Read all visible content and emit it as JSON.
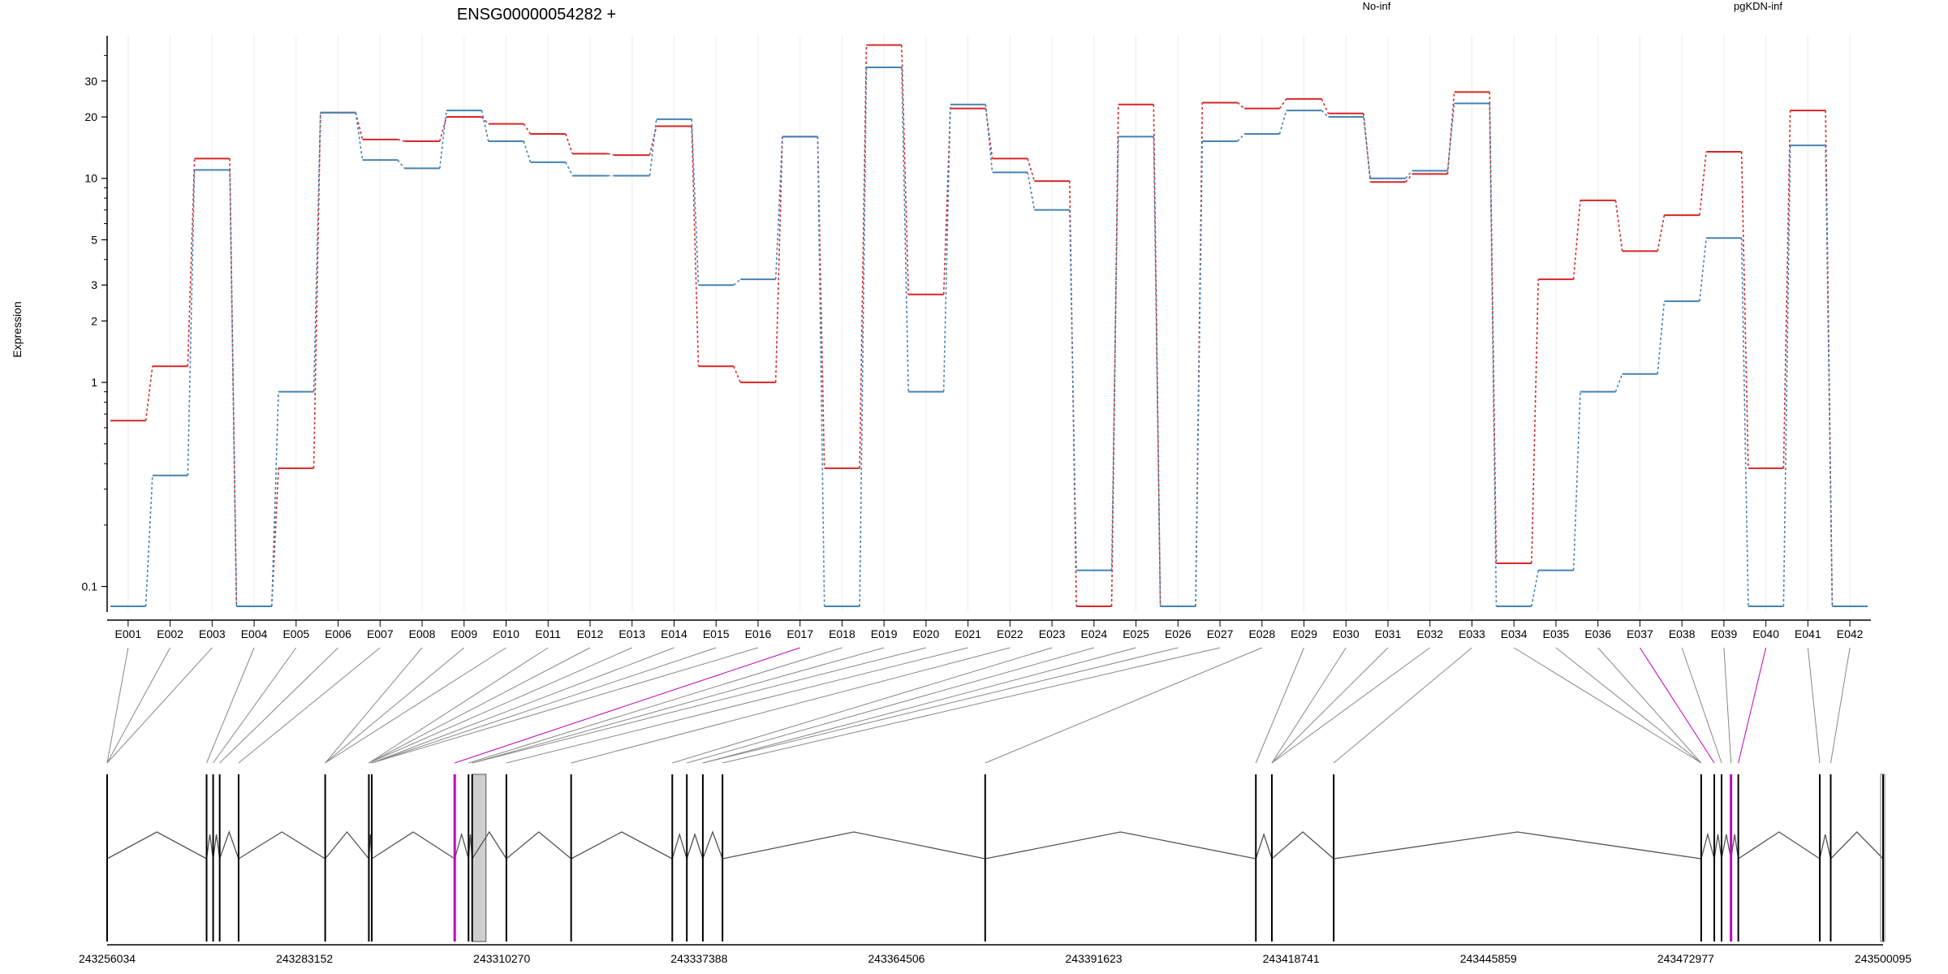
{
  "chart_data": {
    "type": "line",
    "title": "ENSG00000054282 +",
    "ylabel": "Expression",
    "xlabel": "",
    "y_scale": "log",
    "ylim": [
      0.075,
      50
    ],
    "y_ticks": [
      0.1,
      1,
      2,
      3,
      5,
      10,
      20,
      30
    ],
    "y_tick_labels": [
      "0.1",
      "1",
      "2",
      "3",
      "5",
      "10",
      "20",
      "30"
    ],
    "grid": "vertical-only",
    "legend_position": "top",
    "categories": [
      "E001",
      "E002",
      "E003",
      "E004",
      "E005",
      "E006",
      "E007",
      "E008",
      "E009",
      "E010",
      "E011",
      "E012",
      "E013",
      "E014",
      "E015",
      "E016",
      "E017",
      "E018",
      "E019",
      "E020",
      "E021",
      "E022",
      "E023",
      "E024",
      "E025",
      "E026",
      "E027",
      "E028",
      "E029",
      "E030",
      "E031",
      "E032",
      "E033",
      "E034",
      "E035",
      "E036",
      "E037",
      "E038",
      "E039",
      "E040",
      "E041",
      "E042"
    ],
    "series": [
      {
        "name": "No-inf",
        "color": "#d62728",
        "values": [
          0.65,
          1.2,
          12.5,
          0.08,
          0.38,
          21,
          15.5,
          15.2,
          20,
          18.5,
          16.5,
          13.2,
          13,
          18,
          1.2,
          1.0,
          16,
          0.38,
          45,
          2.7,
          22,
          12.5,
          9.7,
          0.08,
          23,
          0.08,
          23.5,
          22,
          24.5,
          20.8,
          9.6,
          10.5,
          26.5,
          0.13,
          3.2,
          7.8,
          4.4,
          6.6,
          13.5,
          0.38,
          21.5,
          0.08
        ]
      },
      {
        "name": "pgKDN-inf",
        "color": "#4682b4",
        "values": [
          0.08,
          0.35,
          11,
          0.08,
          0.9,
          21,
          12.3,
          11.2,
          21.5,
          15.2,
          12,
          10.3,
          10.3,
          19.5,
          3.0,
          3.2,
          16,
          0.08,
          35,
          0.9,
          23,
          10.7,
          7,
          0.12,
          16,
          0.08,
          15.2,
          16.5,
          21.5,
          20,
          10,
          10.9,
          23.3,
          0.08,
          0.12,
          0.9,
          1.1,
          2.5,
          5.1,
          0.08,
          14.5,
          0.08
        ]
      }
    ],
    "gene_model": {
      "coord_ticks": [
        "243256034",
        "243283152",
        "243310270",
        "243337388",
        "243364506",
        "243391623",
        "243418741",
        "243445859",
        "243472977",
        "243500095"
      ],
      "coord_range": [
        243256034,
        243500095
      ],
      "exon_positions": [
        243256034,
        243269700,
        243270600,
        243271500,
        243274100,
        243286000,
        243292000,
        243292400,
        243303800,
        243305700,
        243306200,
        243310900,
        243319800,
        243333700,
        243335700,
        243337900,
        243340600,
        243376700,
        243413900,
        243416100,
        243424600,
        243475100,
        243476900,
        243477900,
        243479200,
        243480200,
        243491400,
        243492900,
        243500095
      ],
      "exon_links": [
        [
          1,
          0
        ],
        [
          2,
          0
        ],
        [
          3,
          0
        ],
        [
          4,
          1
        ],
        [
          5,
          2
        ],
        [
          6,
          3
        ],
        [
          7,
          4
        ],
        [
          8,
          5
        ],
        [
          9,
          5
        ],
        [
          10,
          5
        ],
        [
          11,
          6
        ],
        [
          12,
          6
        ],
        [
          13,
          6
        ],
        [
          14,
          7
        ],
        [
          15,
          7
        ],
        [
          16,
          7
        ],
        [
          17,
          8
        ],
        [
          18,
          9
        ],
        [
          19,
          10
        ],
        [
          20,
          10
        ],
        [
          21,
          11
        ],
        [
          22,
          12
        ],
        [
          23,
          13
        ],
        [
          24,
          14
        ],
        [
          25,
          15
        ],
        [
          26,
          15
        ],
        [
          27,
          16
        ],
        [
          28,
          17
        ],
        [
          29,
          18
        ],
        [
          30,
          19
        ],
        [
          31,
          19
        ],
        [
          32,
          19
        ],
        [
          33,
          20
        ],
        [
          34,
          21
        ],
        [
          35,
          21
        ],
        [
          36,
          21
        ],
        [
          37,
          22
        ],
        [
          38,
          23
        ],
        [
          39,
          24
        ],
        [
          40,
          25
        ],
        [
          41,
          26
        ],
        [
          42,
          27
        ]
      ],
      "highlight_exons": [
        8,
        24
      ],
      "highlight_links": [
        16,
        36,
        39
      ],
      "shaded_exon_range": [
        243306200,
        243308100
      ],
      "highlight_color": "#c000c0"
    }
  }
}
